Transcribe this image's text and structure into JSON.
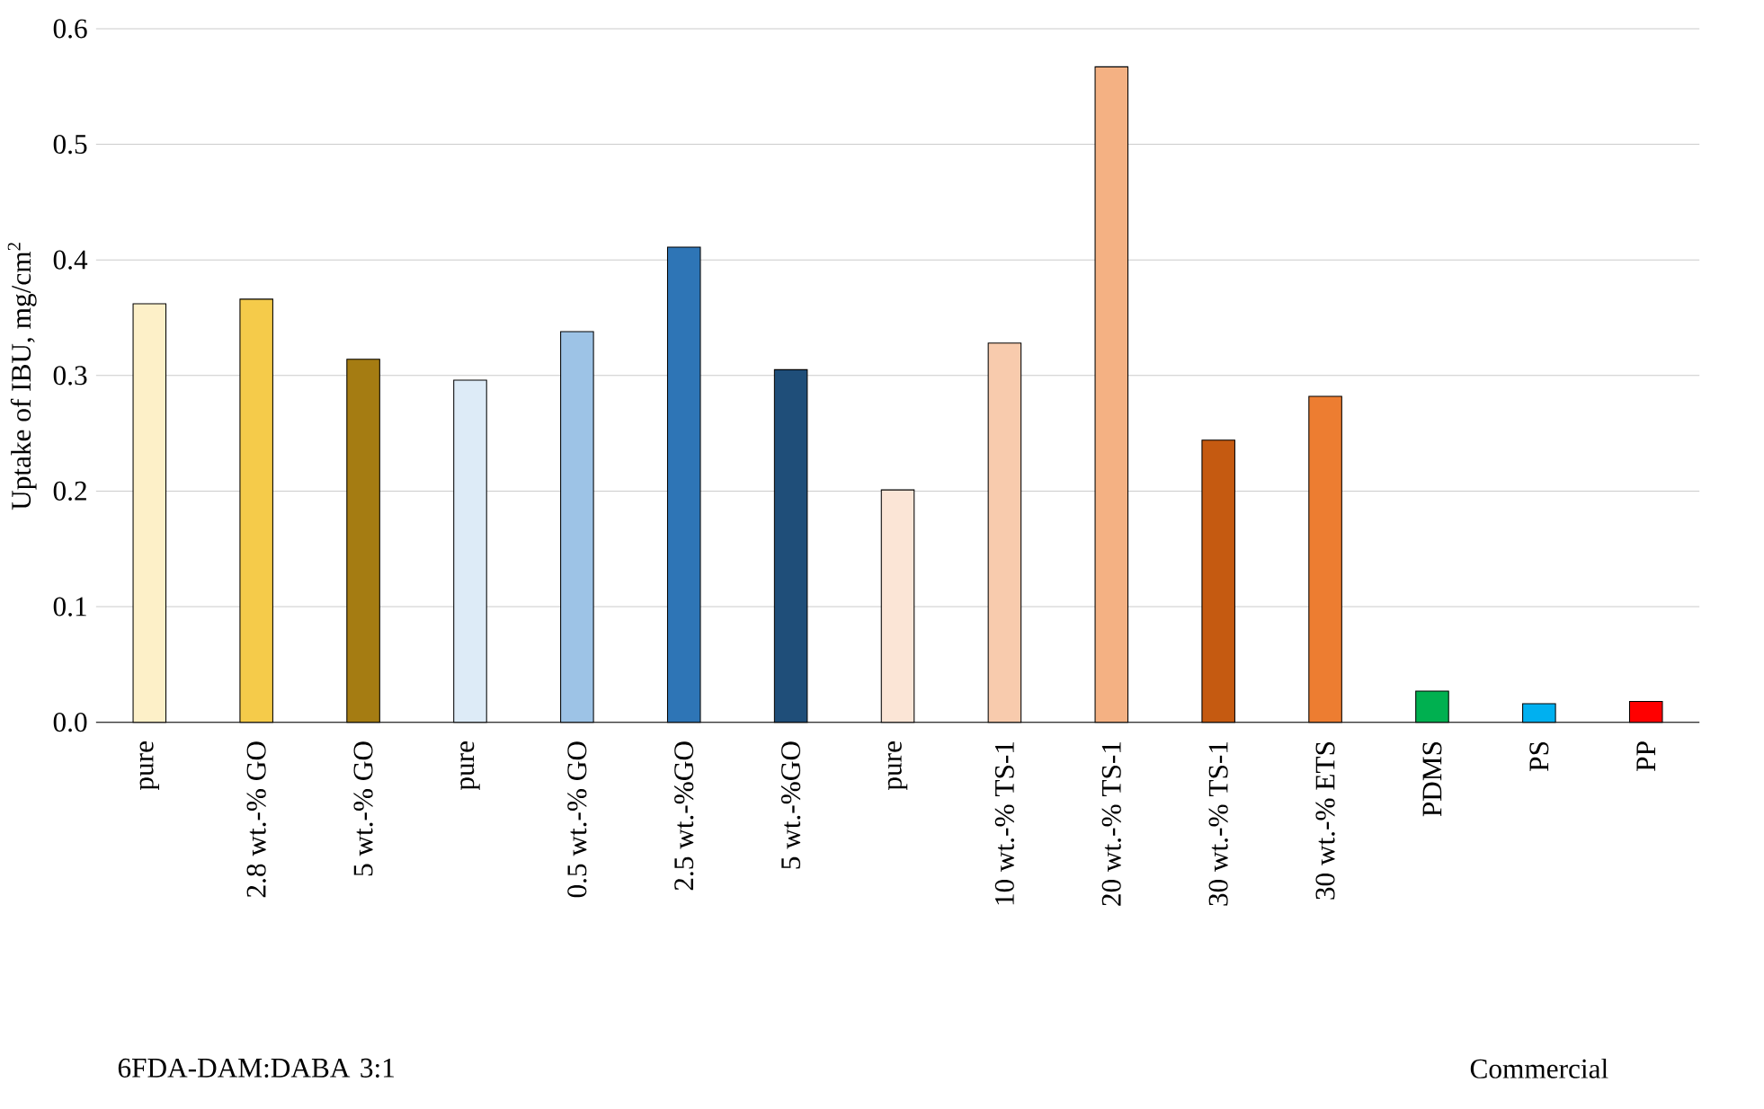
{
  "chart_data": {
    "type": "bar",
    "ylabel": "Uptake of IBU, mg/cm$^{2}$",
    "categories": [
      "pure",
      "2.8 wt.-% GO",
      "5 wt.-% GO",
      "pure",
      "0.5 wt.-% GO",
      "2.5 wt.-%GO",
      "5 wt.-%GO",
      "pure",
      "10 wt.-% TS-1",
      "20 wt.-% TS-1",
      "30 wt.-% TS-1",
      "30 wt.-% ETS",
      "PDMS",
      "PS",
      "PP"
    ],
    "values": [
      0.362,
      0.366,
      0.314,
      0.296,
      0.338,
      0.411,
      0.305,
      0.201,
      0.328,
      0.567,
      0.244,
      0.282,
      0.027,
      0.016,
      0.018
    ],
    "colors": [
      "#fdf0c8",
      "#f5cb4a",
      "#a57c12",
      "#ddebf7",
      "#9dc3e6",
      "#2e75b6",
      "#1f4e79",
      "#fbe5d6",
      "#f8cbad",
      "#f4b183",
      "#c55a11",
      "#ed7d31",
      "#00b050",
      "#00b0f0",
      "#ff0000"
    ],
    "ylim": [
      0,
      0.6
    ],
    "yticks": [
      {
        "value": 0,
        "label": "0.0"
      },
      0.1,
      0.2,
      0.3,
      0.4,
      0.5,
      0.6
    ],
    "grid": "y",
    "annotations": [
      "6FDA-DAM:DABA 3:1",
      "Commercial"
    ]
  }
}
